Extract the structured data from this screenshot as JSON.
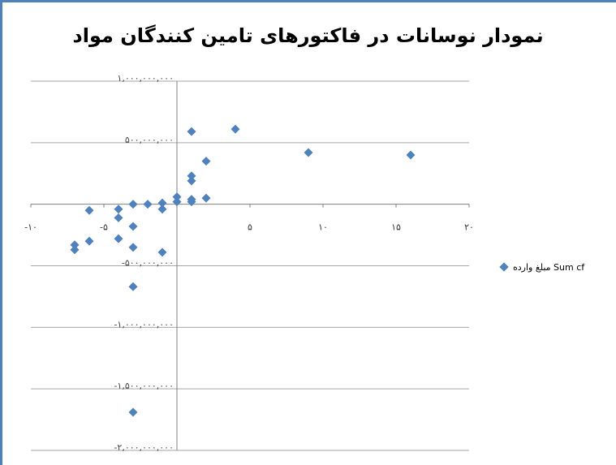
{
  "chart_data": {
    "type": "scatter",
    "title": "نمودار نوسانات در فاکتورهای تامین کنندگان مواد",
    "xlabel": "",
    "ylabel": "",
    "xlim": [
      -10,
      20
    ],
    "ylim": [
      -2000000000,
      1000000000
    ],
    "x_ticks": [
      -10,
      -5,
      0,
      5,
      10,
      15,
      20
    ],
    "x_tick_labels": [
      "-۱۰",
      "-۵",
      "",
      "۵",
      "۱۰",
      "۱۵",
      "۲۰"
    ],
    "y_ticks": [
      1000000000,
      500000000,
      0,
      -500000000,
      -1000000000,
      -1500000000,
      -2000000000
    ],
    "y_tick_labels": [
      "۱,۰۰۰,۰۰۰,۰۰۰",
      "۵۰۰,۰۰۰,۰۰۰",
      "",
      "-۵۰۰,۰۰۰,۰۰۰",
      "-۱,۰۰۰,۰۰۰,۰۰۰",
      "-۱,۵۰۰,۰۰۰,۰۰۰",
      "-۲,۰۰۰,۰۰۰,۰۰۰"
    ],
    "grid": {
      "horizontal": true,
      "vertical": false
    },
    "legend_position": "right",
    "color": "#4f81bd",
    "series": [
      {
        "name": "مبلغ وارده Sum cf",
        "points": [
          [
            1,
            590000000
          ],
          [
            4,
            610000000
          ],
          [
            9,
            420000000
          ],
          [
            16,
            400000000
          ],
          [
            2,
            350000000
          ],
          [
            1,
            230000000
          ],
          [
            1,
            190000000
          ],
          [
            0,
            60000000
          ],
          [
            1,
            40000000
          ],
          [
            2,
            50000000
          ],
          [
            0,
            20000000
          ],
          [
            1,
            20000000
          ],
          [
            -1,
            10000000
          ],
          [
            -2,
            0
          ],
          [
            -3,
            0
          ],
          [
            -1,
            -40000000
          ],
          [
            -4,
            -40000000
          ],
          [
            -6,
            -50000000
          ],
          [
            -4,
            -110000000
          ],
          [
            -3,
            -180000000
          ],
          [
            -4,
            -280000000
          ],
          [
            -6,
            -300000000
          ],
          [
            -7,
            -330000000
          ],
          [
            -3,
            -350000000
          ],
          [
            -7,
            -370000000
          ],
          [
            -1,
            -390000000
          ],
          [
            -3,
            -670000000
          ],
          [
            -3,
            -1690000000
          ]
        ]
      }
    ]
  }
}
